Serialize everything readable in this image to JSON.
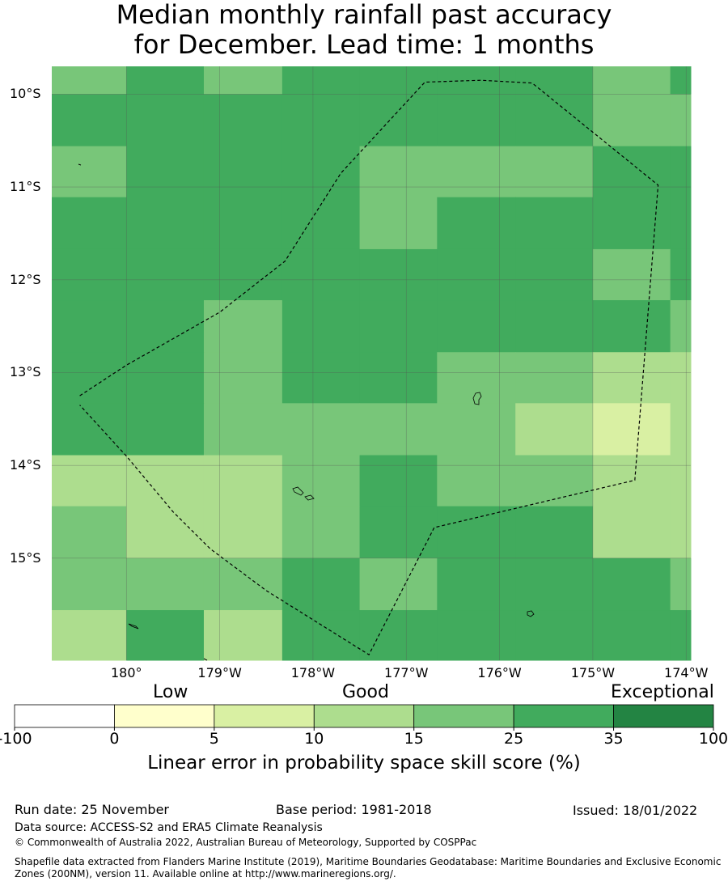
{
  "title": {
    "line1": "Median monthly rainfall past accuracy",
    "line2": "for December. Lead time: 1 months"
  },
  "map": {
    "lon_range": [
      -180.8,
      -173.95
    ],
    "lat_range": [
      -16.1,
      -9.7
    ],
    "lat_ticks": [
      {
        "value": -10,
        "label": "10°S"
      },
      {
        "value": -11,
        "label": "11°S"
      },
      {
        "value": -12,
        "label": "12°S"
      },
      {
        "value": -13,
        "label": "13°S"
      },
      {
        "value": -14,
        "label": "14°S"
      },
      {
        "value": -15,
        "label": "15°S"
      }
    ],
    "lon_ticks": [
      {
        "value": -180,
        "label": "180°"
      },
      {
        "value": -179,
        "label": "179°W"
      },
      {
        "value": -178,
        "label": "178°W"
      },
      {
        "value": -177,
        "label": "177°W"
      },
      {
        "value": -176,
        "label": "176°W"
      },
      {
        "value": -175,
        "label": "175°W"
      },
      {
        "value": -174,
        "label": "174°W"
      }
    ],
    "grid_lon_edges": [
      -180.8,
      -180.0,
      -179.17,
      -178.33,
      -177.5,
      -176.67,
      -175.83,
      -175.0,
      -174.17,
      -173.95
    ],
    "grid_lat_edges": [
      -9.7,
      -10.0,
      -10.56,
      -11.11,
      -11.67,
      -12.22,
      -12.78,
      -13.33,
      -13.89,
      -14.44,
      -15.0,
      -15.56,
      -16.1
    ],
    "skill_rows": [
      [
        15,
        25,
        15,
        25,
        25,
        25,
        25,
        15,
        25
      ],
      [
        25,
        25,
        25,
        25,
        25,
        25,
        25,
        15,
        15
      ],
      [
        15,
        25,
        25,
        25,
        15,
        15,
        15,
        25,
        25
      ],
      [
        25,
        25,
        25,
        25,
        15,
        25,
        25,
        25,
        25
      ],
      [
        25,
        25,
        25,
        25,
        25,
        25,
        25,
        15,
        25
      ],
      [
        25,
        25,
        15,
        25,
        25,
        25,
        25,
        25,
        15
      ],
      [
        25,
        25,
        15,
        25,
        25,
        15,
        15,
        10,
        10
      ],
      [
        25,
        25,
        15,
        15,
        15,
        15,
        10,
        5,
        10
      ],
      [
        10,
        10,
        10,
        15,
        25,
        15,
        15,
        10,
        10
      ],
      [
        15,
        10,
        10,
        15,
        25,
        25,
        25,
        10,
        10
      ],
      [
        15,
        15,
        15,
        25,
        15,
        25,
        25,
        25,
        15
      ],
      [
        10,
        25,
        10,
        25,
        25,
        25,
        25,
        25,
        25
      ]
    ],
    "boundary": [
      [
        -180.5,
        -13.25
      ],
      [
        -180.0,
        -12.92
      ],
      [
        -179.0,
        -12.35
      ],
      [
        -178.3,
        -11.8
      ],
      [
        -177.7,
        -10.85
      ],
      [
        -176.8,
        -9.87
      ],
      [
        -176.2,
        -9.85
      ],
      [
        -175.65,
        -9.88
      ],
      [
        -174.3,
        -10.98
      ],
      [
        -174.55,
        -14.16
      ],
      [
        -176.7,
        -14.67
      ],
      [
        -177.4,
        -16.04
      ],
      [
        -178.5,
        -15.35
      ],
      [
        -179.1,
        -14.9
      ],
      [
        -179.5,
        -14.5
      ],
      [
        -180.0,
        -13.9
      ],
      [
        -180.5,
        -13.35
      ]
    ]
  },
  "colorbar": {
    "categories": {
      "low": "Low",
      "good": "Good",
      "exceptional": "Exceptional"
    },
    "tick_labels": [
      "-100",
      "0",
      "5",
      "10",
      "15",
      "25",
      "35",
      "100"
    ],
    "colors": [
      "#ffffff",
      "#ffffcc",
      "#d9f0a3",
      "#addd8e",
      "#78c679",
      "#41ab5d",
      "#238443"
    ],
    "label": "Linear error in probability space skill score (%)"
  },
  "footer": {
    "run_date": "Run date: 25 November",
    "base_period": "Base period: 1981-2018",
    "issued": "Issued: 18/01/2022",
    "data_source": "Data source: ACCESS-S2 and ERA5 Climate Reanalysis",
    "copyright": "© Commonwealth of Australia 2022, Australian Bureau of Meteorology, Supported by COSPPac",
    "shapefile": "Shapefile data extracted from Flanders Marine Institute (2019), Maritime Boundaries Geodatabase: Maritime Boundaries and Exclusive Economic Zones (200NM), version 11. Available online at http://www.marineregions.org/."
  }
}
